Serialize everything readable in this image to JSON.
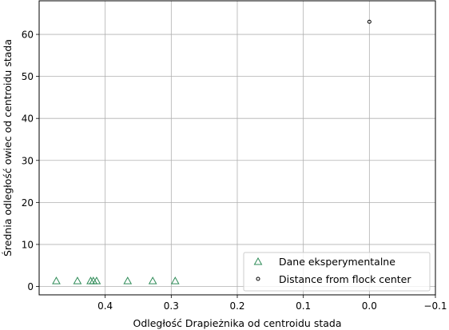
{
  "chart_data": {
    "type": "scatter",
    "title": "",
    "xlabel": "Odległość Drapieżnika od centroidu stada",
    "ylabel": "Średnia odległość owiec od centroidu stada",
    "xlim": [
      0.5,
      -0.1
    ],
    "ylim": [
      -2,
      68
    ],
    "x_inverted": true,
    "grid": true,
    "legend_position": "bottom-right",
    "x_ticks": [
      0.4,
      0.3,
      0.2,
      0.1,
      0.0,
      -0.1
    ],
    "x_tick_labels": [
      "0.4",
      "0.3",
      "0.2",
      "0.1",
      "0.0",
      "−0.1"
    ],
    "y_ticks": [
      0,
      10,
      20,
      30,
      40,
      50,
      60
    ],
    "y_tick_labels": [
      "0",
      "10",
      "20",
      "30",
      "40",
      "50",
      "60"
    ],
    "series": [
      {
        "name": "Dane eksperymentalne",
        "marker": "triangle-open",
        "color": "#2e8b57",
        "points": [
          {
            "x": 0.474,
            "y": 1.2
          },
          {
            "x": 0.442,
            "y": 1.2
          },
          {
            "x": 0.422,
            "y": 1.2
          },
          {
            "x": 0.418,
            "y": 1.2
          },
          {
            "x": 0.413,
            "y": 1.2
          },
          {
            "x": 0.366,
            "y": 1.2
          },
          {
            "x": 0.328,
            "y": 1.2
          },
          {
            "x": 0.294,
            "y": 1.2
          }
        ]
      },
      {
        "name": "Distance from flock center",
        "marker": "circle-open",
        "color": "#000000",
        "points": [
          {
            "x": 0.0,
            "y": 63
          }
        ]
      }
    ]
  }
}
